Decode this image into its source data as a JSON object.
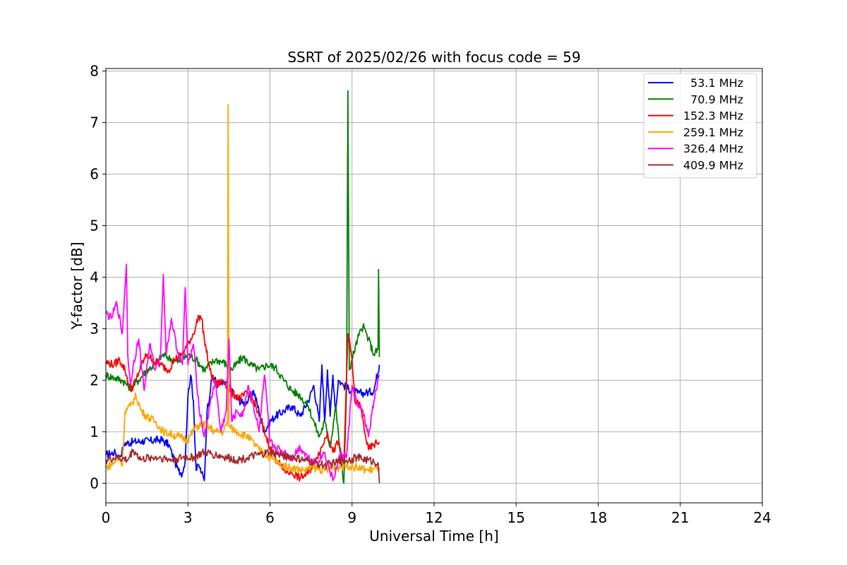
{
  "chart_data": {
    "type": "line",
    "title": "SSRT of 2025/02/26 with focus code = 59",
    "xlabel": "Universal Time [h]",
    "ylabel": "Y-factor [dB]",
    "xlim": [
      0,
      24
    ],
    "ylim": [
      -0.38,
      8.05
    ],
    "xticks": [
      0,
      3,
      6,
      9,
      12,
      15,
      18,
      21,
      24
    ],
    "yticks": [
      0,
      1,
      2,
      3,
      4,
      5,
      6,
      7,
      8
    ],
    "grid": true,
    "legend_position": "top-right",
    "series": [
      {
        "name": "53.1 MHz",
        "label": "  53.1 MHz",
        "color": "#0000ff",
        "x": [
          0,
          0.3,
          0.5,
          0.7,
          1.0,
          1.3,
          1.6,
          2.0,
          2.3,
          2.5,
          2.65,
          2.75,
          2.8,
          2.9,
          3.0,
          3.1,
          3.2,
          3.3,
          3.4,
          3.5,
          3.6,
          3.7,
          3.9,
          4.1,
          4.4,
          4.7,
          5.0,
          5.2,
          5.4,
          5.6,
          5.8,
          6.0,
          6.2,
          6.5,
          6.8,
          7.1,
          7.4,
          7.6,
          7.8,
          7.9,
          8.0,
          8.1,
          8.2,
          8.3,
          8.4,
          8.5,
          8.6,
          8.7,
          8.8,
          9.0,
          9.2,
          9.5,
          9.8,
          10.0
        ],
        "y": [
          0.55,
          0.6,
          0.5,
          0.78,
          0.8,
          0.82,
          0.82,
          0.85,
          0.75,
          0.45,
          0.25,
          0.2,
          0.2,
          0.45,
          1.7,
          2.1,
          1.6,
          0.25,
          0.35,
          0.2,
          0.05,
          1.4,
          2.1,
          1.9,
          1.95,
          1.7,
          1.55,
          1.6,
          1.8,
          1.4,
          1.0,
          1.2,
          1.3,
          1.4,
          1.5,
          1.3,
          1.6,
          1.9,
          1.2,
          2.3,
          1.2,
          2.2,
          1.3,
          2.1,
          1.4,
          2.0,
          1.95,
          1.9,
          1.85,
          1.8,
          1.75,
          1.75,
          1.8,
          2.3
        ]
      },
      {
        "name": "70.9 MHz",
        "label": "  70.9 MHz",
        "color": "#008000",
        "x": [
          0,
          0.3,
          0.6,
          0.9,
          1.2,
          1.5,
          1.8,
          2.1,
          2.4,
          2.7,
          3.0,
          3.3,
          3.6,
          4.0,
          4.3,
          4.6,
          5.0,
          5.3,
          5.6,
          5.9,
          6.2,
          6.5,
          6.8,
          7.1,
          7.4,
          7.6,
          7.8,
          8.0,
          8.2,
          8.4,
          8.6,
          8.7,
          8.8,
          8.85,
          8.9,
          9.0,
          9.2,
          9.4,
          9.6,
          9.8,
          9.95,
          9.97,
          10.0
        ],
        "y": [
          2.1,
          2.05,
          2.0,
          1.85,
          2.0,
          2.2,
          2.3,
          2.5,
          2.4,
          2.35,
          2.5,
          2.4,
          2.2,
          2.4,
          2.35,
          2.2,
          2.45,
          2.3,
          2.2,
          2.3,
          2.25,
          2.0,
          1.8,
          1.7,
          1.5,
          1.2,
          0.9,
          1.2,
          0.7,
          1.5,
          0.4,
          0.0,
          1.8,
          7.62,
          2.2,
          2.4,
          2.8,
          3.05,
          2.8,
          2.5,
          2.6,
          4.15,
          2.45
        ]
      },
      {
        "name": "152.3 MHz",
        "label": "152.3 MHz",
        "color": "#ff0000",
        "x": [
          0,
          0.3,
          0.5,
          0.7,
          0.9,
          1.1,
          1.3,
          1.5,
          1.7,
          2.0,
          2.3,
          2.5,
          2.8,
          3.0,
          3.2,
          3.4,
          3.5,
          3.6,
          3.8,
          4.0,
          4.3,
          4.6,
          4.9,
          5.2,
          5.4,
          5.6,
          5.8,
          6.0,
          6.2,
          6.5,
          6.8,
          7.1,
          7.4,
          7.7,
          7.9,
          8.1,
          8.3,
          8.5,
          8.7,
          8.85,
          9.0,
          9.1,
          9.3,
          9.5,
          9.6,
          9.8,
          10.0
        ],
        "y": [
          2.35,
          2.3,
          2.4,
          2.2,
          1.8,
          2.0,
          2.3,
          2.5,
          2.4,
          2.3,
          2.2,
          2.4,
          2.5,
          2.7,
          2.9,
          3.25,
          3.2,
          2.8,
          2.2,
          1.9,
          2.0,
          1.75,
          1.65,
          1.75,
          1.6,
          1.3,
          1.0,
          0.7,
          0.5,
          0.25,
          0.2,
          0.1,
          0.2,
          0.5,
          0.7,
          1.0,
          0.6,
          0.8,
          0.35,
          2.9,
          2.4,
          1.6,
          1.5,
          0.9,
          0.65,
          0.75,
          0.8
        ]
      },
      {
        "name": "259.1 MHz",
        "label": "259.1 MHz",
        "color": "#ffa500",
        "x": [
          0,
          0.3,
          0.5,
          0.6,
          0.7,
          0.9,
          1.1,
          1.3,
          1.5,
          1.8,
          2.1,
          2.4,
          2.7,
          3.0,
          3.3,
          3.6,
          4.0,
          4.3,
          4.45,
          4.47,
          4.5,
          4.8,
          5.2,
          5.6,
          6.0,
          6.4,
          6.8,
          7.2,
          7.6,
          8.0,
          8.4,
          8.8,
          9.2,
          9.6,
          10.0
        ],
        "y": [
          0.3,
          0.4,
          0.5,
          0.35,
          1.4,
          1.5,
          1.7,
          1.4,
          1.3,
          1.2,
          1.0,
          0.95,
          0.9,
          0.85,
          1.1,
          1.15,
          1.0,
          1.0,
          1.2,
          7.35,
          1.1,
          1.0,
          0.9,
          0.65,
          0.5,
          0.35,
          0.3,
          0.25,
          0.3,
          0.25,
          0.3,
          0.35,
          0.3,
          0.25,
          0.3
        ]
      },
      {
        "name": "326.4 MHz",
        "label": "326.4 MHz",
        "color": "#ff00ff",
        "x": [
          0,
          0.2,
          0.4,
          0.6,
          0.7,
          0.75,
          0.8,
          0.9,
          1.0,
          1.2,
          1.4,
          1.6,
          1.8,
          2.0,
          2.1,
          2.2,
          2.4,
          2.6,
          2.8,
          2.9,
          3.0,
          3.2,
          3.4,
          3.6,
          3.8,
          4.0,
          4.2,
          4.4,
          4.5,
          4.6,
          4.8,
          5.0,
          5.2,
          5.4,
          5.6,
          5.8,
          6.0,
          6.2,
          6.5,
          6.8,
          7.1,
          7.4,
          7.7,
          8.0,
          8.3,
          8.6,
          8.8,
          9.0,
          9.2,
          9.4,
          9.6,
          9.8,
          10.0
        ],
        "y": [
          3.3,
          3.2,
          3.5,
          2.9,
          3.8,
          4.25,
          2.5,
          1.9,
          2.3,
          2.8,
          1.8,
          2.7,
          2.2,
          2.5,
          4.05,
          2.5,
          3.2,
          2.6,
          2.3,
          3.8,
          2.3,
          2.7,
          1.5,
          0.9,
          1.5,
          2.0,
          1.0,
          1.4,
          2.8,
          1.2,
          1.4,
          1.3,
          1.9,
          1.5,
          1.0,
          2.1,
          0.8,
          0.7,
          0.6,
          0.5,
          0.7,
          0.5,
          0.4,
          0.6,
          0.05,
          0.6,
          0.5,
          1.9,
          1.5,
          1.4,
          0.9,
          1.6,
          2.1
        ]
      },
      {
        "name": "409.9 MHz",
        "label": "409.9 MHz",
        "color": "#a52a2a",
        "x": [
          0,
          0.4,
          0.8,
          1.0,
          1.3,
          1.6,
          2.0,
          2.4,
          2.8,
          3.2,
          3.6,
          4.0,
          4.4,
          4.8,
          5.2,
          5.6,
          6.0,
          6.4,
          6.8,
          7.2,
          7.6,
          8.0,
          8.4,
          8.8,
          9.2,
          9.6,
          9.95,
          10.0
        ],
        "y": [
          0.45,
          0.5,
          0.45,
          0.65,
          0.45,
          0.5,
          0.5,
          0.45,
          0.5,
          0.5,
          0.6,
          0.55,
          0.5,
          0.45,
          0.5,
          0.55,
          0.6,
          0.55,
          0.5,
          0.45,
          0.4,
          0.35,
          0.4,
          0.45,
          0.5,
          0.45,
          0.4,
          0.0
        ]
      }
    ]
  }
}
